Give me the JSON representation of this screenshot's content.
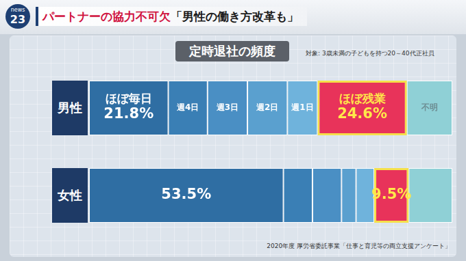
{
  "header": {
    "badge_top": "news",
    "badge_number": "23",
    "headline_lead": "パートナーの協力不可欠",
    "headline": "「男性の働き方改革も」"
  },
  "chart_data": {
    "type": "bar",
    "orientation": "horizontal",
    "stacked": true,
    "title": "定時退社の頻度",
    "subtitle": "対象: 3歳未満の子どもを持つ20～40代正社員",
    "source": "2020年度 厚労省委託事業「仕事と育児等の両立支援アンケート」",
    "categories": [
      "男性",
      "女性"
    ],
    "series": [
      {
        "name": "ほぼ毎日",
        "color": "#2f6ea3",
        "values": [
          21.8,
          53.5
        ],
        "value_labels": [
          "21.8%",
          "53.5%"
        ]
      },
      {
        "name": "週4日",
        "color": "#3a7fb5",
        "values": [
          10.8,
          8
        ],
        "value_labels": [
          null,
          null
        ]
      },
      {
        "name": "週3日",
        "color": "#4a8fc4",
        "values": [
          11,
          8
        ],
        "value_labels": [
          null,
          null
        ]
      },
      {
        "name": "週2日",
        "color": "#5aa0cf",
        "values": [
          11,
          4
        ],
        "value_labels": [
          null,
          null
        ]
      },
      {
        "name": "週1日",
        "color": "#6fb3dc",
        "values": [
          8.3,
          5
        ],
        "value_labels": [
          null,
          null
        ]
      },
      {
        "name": "ほぼ残業",
        "color": "#e8335a",
        "values": [
          24.6,
          9.5
        ],
        "value_labels": [
          "24.6%",
          "9.5%"
        ]
      },
      {
        "name": "不明",
        "color": "#8fd0d6",
        "values": [
          12.5,
          12
        ],
        "value_labels": [
          null,
          null
        ]
      }
    ],
    "xlim": [
      0,
      100
    ],
    "grid": false,
    "tick_labels": false,
    "data_labels": true
  }
}
